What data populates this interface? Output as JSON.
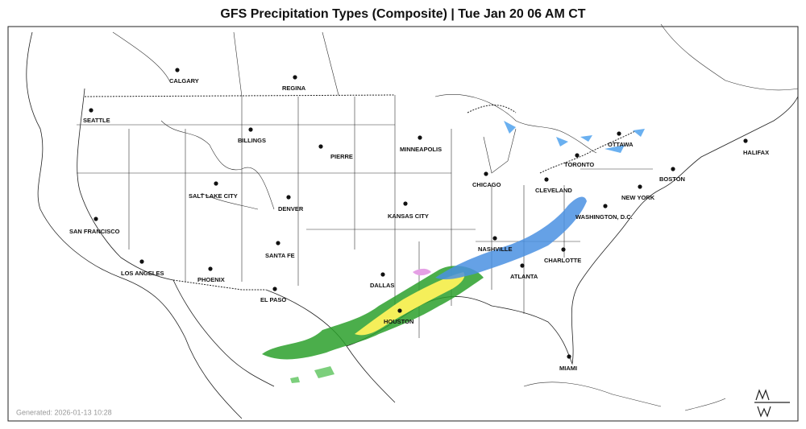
{
  "title": "GFS Precipitation Types (Composite) | Tue Jan 20 06 AM CT",
  "cities": [
    "CALGARY",
    "REGINA",
    "SEATTLE",
    "BILLINGS",
    "PIERRE",
    "MINNEAPOLIS",
    "OTTAWA",
    "HALIFAX",
    "TORONTO",
    "BOSTON",
    "CHICAGO",
    "CLEVELAND",
    "NEW YORK",
    "SALT LAKE CITY",
    "DENVER",
    "KANSAS CITY",
    "WASHINGTON, D.C.",
    "SAN FRANCISCO",
    "NASHVILLE",
    "CHARLOTTE",
    "SANTA FE",
    "LOS ANGELES",
    "PHOENIX",
    "ATLANTA",
    "DALLAS",
    "EL PASO",
    "HOUSTON",
    "MIAMI"
  ],
  "generated": "Generated: 2026-01-13 10:28"
}
